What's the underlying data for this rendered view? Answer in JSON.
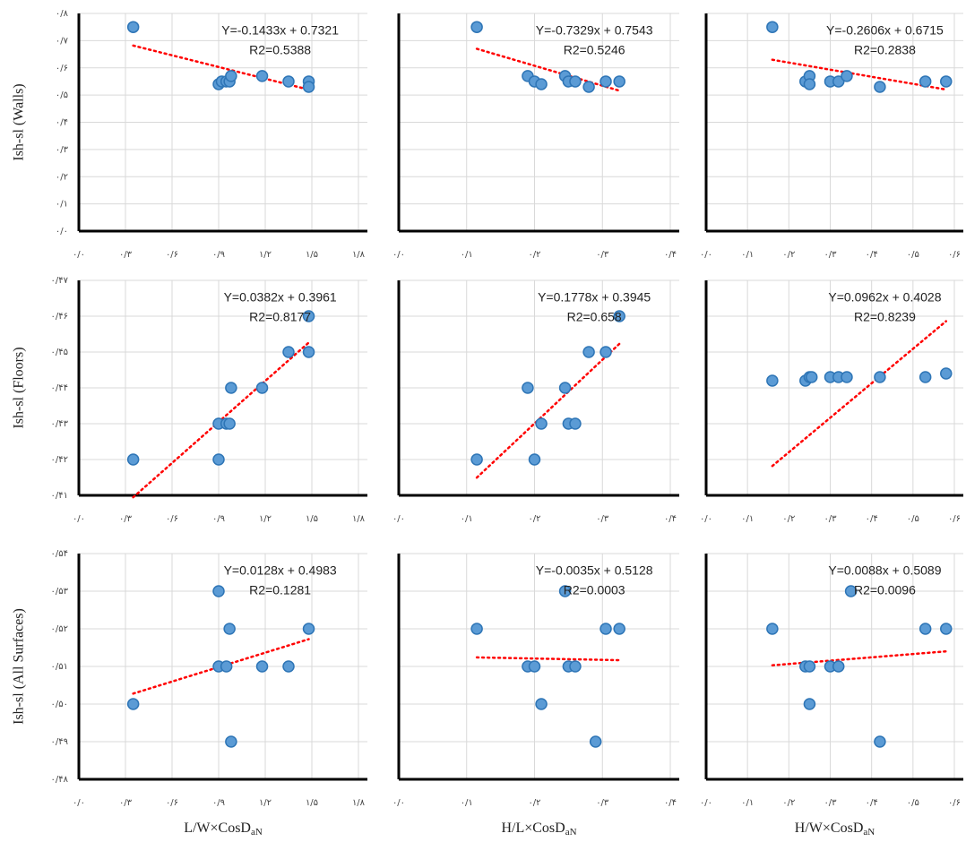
{
  "chart_data": [
    {
      "type": "scatter",
      "y_label": "Ish-sl (Walls)",
      "color": "#5b9bd5",
      "edge_color": "#2e75b6",
      "grid": true,
      "show_ytick_labels": true,
      "x": [
        0.35,
        0.9,
        0.92,
        0.95,
        0.97,
        0.98,
        1.18,
        1.35,
        1.48,
        1.48
      ],
      "values": [
        0.75,
        0.54,
        0.55,
        0.55,
        0.55,
        0.57,
        0.57,
        0.55,
        0.55,
        0.53
      ],
      "xlim": [
        0,
        1.8
      ],
      "ylim": [
        0,
        0.8
      ],
      "xticks": [
        {
          "value": 0,
          "label": "۰/۰"
        },
        {
          "value": 0.3,
          "label": "۰/۳"
        },
        {
          "value": 0.6,
          "label": "۰/۶"
        },
        {
          "value": 0.9,
          "label": "۰/۹"
        },
        {
          "value": 1.2,
          "label": "۱/۲"
        },
        {
          "value": 1.5,
          "label": "۱/۵"
        },
        {
          "value": 1.8,
          "label": "۱/۸"
        }
      ],
      "yticks": [
        {
          "value": 0,
          "label": "۰/۰"
        },
        {
          "value": 0.1,
          "label": "۰/۱"
        },
        {
          "value": 0.2,
          "label": "۰/۲"
        },
        {
          "value": 0.3,
          "label": "۰/۳"
        },
        {
          "value": 0.4,
          "label": "۰/۴"
        },
        {
          "value": 0.5,
          "label": "۰/۵"
        },
        {
          "value": 0.6,
          "label": "۰/۶"
        },
        {
          "value": 0.7,
          "label": "۰/۷"
        },
        {
          "value": 0.8,
          "label": "۰/۸"
        }
      ],
      "equation": "Y=-0.1433x + 0.7321",
      "r2": "R2=0.5388",
      "trendline": {
        "slope": -0.1433,
        "intercept": 0.7321,
        "color": "#ff0000"
      }
    },
    {
      "type": "scatter",
      "color": "#5b9bd5",
      "edge_color": "#2e75b6",
      "grid": true,
      "show_ytick_labels": false,
      "x": [
        0.115,
        0.19,
        0.2,
        0.21,
        0.245,
        0.25,
        0.26,
        0.28,
        0.305,
        0.325
      ],
      "values": [
        0.75,
        0.57,
        0.55,
        0.54,
        0.57,
        0.55,
        0.55,
        0.53,
        0.55,
        0.55
      ],
      "xlim": [
        0,
        0.4
      ],
      "ylim": [
        0,
        0.8
      ],
      "xticks": [
        {
          "value": 0,
          "label": "۰/۰"
        },
        {
          "value": 0.1,
          "label": "۰/۱"
        },
        {
          "value": 0.2,
          "label": "۰/۲"
        },
        {
          "value": 0.3,
          "label": "۰/۳"
        },
        {
          "value": 0.4,
          "label": "۰/۴"
        }
      ],
      "yticks": [
        0,
        0.1,
        0.2,
        0.3,
        0.4,
        0.5,
        0.6,
        0.7,
        0.8
      ],
      "equation": "Y=-0.7329x + 0.7543",
      "r2": "R2=0.5246",
      "trendline": {
        "slope": -0.7329,
        "intercept": 0.7543,
        "color": "#ff0000"
      }
    },
    {
      "type": "scatter",
      "color": "#5b9bd5",
      "edge_color": "#2e75b6",
      "grid": true,
      "show_ytick_labels": false,
      "x": [
        0.16,
        0.24,
        0.25,
        0.25,
        0.3,
        0.32,
        0.34,
        0.42,
        0.53,
        0.58
      ],
      "values": [
        0.75,
        0.55,
        0.57,
        0.54,
        0.55,
        0.55,
        0.57,
        0.53,
        0.55,
        0.55
      ],
      "xlim": [
        0,
        0.6
      ],
      "ylim": [
        0,
        0.8
      ],
      "xticks": [
        {
          "value": 0,
          "label": "۰/۰"
        },
        {
          "value": 0.1,
          "label": "۰/۱"
        },
        {
          "value": 0.2,
          "label": "۰/۲"
        },
        {
          "value": 0.3,
          "label": "۰/۳"
        },
        {
          "value": 0.4,
          "label": "۰/۴"
        },
        {
          "value": 0.5,
          "label": "۰/۵"
        },
        {
          "value": 0.6,
          "label": "۰/۶"
        }
      ],
      "yticks": [
        0,
        0.1,
        0.2,
        0.3,
        0.4,
        0.5,
        0.6,
        0.7,
        0.8
      ],
      "equation": "Y=-0.2606x + 0.6715",
      "r2": "R2=0.2838",
      "trendline": {
        "slope": -0.2606,
        "intercept": 0.6715,
        "color": "#ff0000"
      }
    },
    {
      "type": "scatter",
      "y_label": "Ish-sl (Floors)",
      "color": "#5b9bd5",
      "edge_color": "#2e75b6",
      "grid": true,
      "show_ytick_labels": true,
      "x": [
        0.35,
        0.9,
        0.9,
        0.95,
        0.97,
        0.98,
        1.18,
        1.35,
        1.48,
        1.48
      ],
      "values": [
        0.42,
        0.43,
        0.42,
        0.43,
        0.43,
        0.44,
        0.44,
        0.45,
        0.45,
        0.46
      ],
      "xlim": [
        0,
        1.8
      ],
      "ylim": [
        0.41,
        0.47
      ],
      "xticks": [
        {
          "value": 0,
          "label": "۰/۰"
        },
        {
          "value": 0.3,
          "label": "۰/۳"
        },
        {
          "value": 0.6,
          "label": "۰/۶"
        },
        {
          "value": 0.9,
          "label": "۰/۹"
        },
        {
          "value": 1.2,
          "label": "۱/۲"
        },
        {
          "value": 1.5,
          "label": "۱/۵"
        },
        {
          "value": 1.8,
          "label": "۱/۸"
        }
      ],
      "yticks": [
        {
          "value": 0.41,
          "label": "۰/۴۱"
        },
        {
          "value": 0.42,
          "label": "۰/۴۲"
        },
        {
          "value": 0.43,
          "label": "۰/۴۳"
        },
        {
          "value": 0.44,
          "label": "۰/۴۴"
        },
        {
          "value": 0.45,
          "label": "۰/۴۵"
        },
        {
          "value": 0.46,
          "label": "۰/۴۶"
        },
        {
          "value": 0.47,
          "label": "۰/۴۷"
        }
      ],
      "equation": "Y=0.0382x + 0.3961",
      "r2": "R2=0.8177",
      "trendline": {
        "slope": 0.0382,
        "intercept": 0.3961,
        "color": "#ff0000"
      }
    },
    {
      "type": "scatter",
      "color": "#5b9bd5",
      "edge_color": "#2e75b6",
      "grid": true,
      "show_ytick_labels": false,
      "x": [
        0.115,
        0.19,
        0.2,
        0.21,
        0.245,
        0.25,
        0.26,
        0.28,
        0.305,
        0.325
      ],
      "values": [
        0.42,
        0.44,
        0.42,
        0.43,
        0.44,
        0.43,
        0.43,
        0.45,
        0.45,
        0.46
      ],
      "xlim": [
        0,
        0.4
      ],
      "ylim": [
        0.41,
        0.47
      ],
      "xticks": [
        {
          "value": 0,
          "label": "۰/۰"
        },
        {
          "value": 0.1,
          "label": "۰/۱"
        },
        {
          "value": 0.2,
          "label": "۰/۲"
        },
        {
          "value": 0.3,
          "label": "۰/۳"
        },
        {
          "value": 0.4,
          "label": "۰/۴"
        }
      ],
      "yticks": [
        0.41,
        0.42,
        0.43,
        0.44,
        0.45,
        0.46,
        0.47
      ],
      "equation": "Y=0.1778x + 0.3945",
      "r2": "R2=0.658",
      "trendline": {
        "slope": 0.1778,
        "intercept": 0.3945,
        "color": "#ff0000"
      }
    },
    {
      "type": "scatter",
      "color": "#5b9bd5",
      "edge_color": "#2e75b6",
      "grid": true,
      "show_ytick_labels": false,
      "x": [
        0.16,
        0.24,
        0.25,
        0.255,
        0.3,
        0.32,
        0.34,
        0.42,
        0.53,
        0.58
      ],
      "values": [
        0.442,
        0.442,
        0.443,
        0.443,
        0.443,
        0.443,
        0.443,
        0.443,
        0.443,
        0.444
      ],
      "xlim": [
        0,
        0.6
      ],
      "ylim": [
        0.41,
        0.47
      ],
      "xticks": [
        {
          "value": 0,
          "label": "۰/۰"
        },
        {
          "value": 0.1,
          "label": "۰/۱"
        },
        {
          "value": 0.2,
          "label": "۰/۲"
        },
        {
          "value": 0.3,
          "label": "۰/۳"
        },
        {
          "value": 0.4,
          "label": "۰/۴"
        },
        {
          "value": 0.5,
          "label": "۰/۵"
        },
        {
          "value": 0.6,
          "label": "۰/۶"
        }
      ],
      "yticks": [
        0.41,
        0.42,
        0.43,
        0.44,
        0.45,
        0.46,
        0.47
      ],
      "equation": "Y=0.0962x + 0.4028",
      "r2": "R2=0.8239",
      "trendline": {
        "slope": 0.0962,
        "intercept": 0.4028,
        "color": "#ff0000"
      }
    },
    {
      "type": "scatter",
      "y_label": "Ish-sl (All Surfaces)",
      "x_label": "L/W×CosD",
      "x_label_sub": "aN",
      "color": "#5b9bd5",
      "edge_color": "#2e75b6",
      "grid": true,
      "show_ytick_labels": true,
      "x": [
        0.35,
        0.9,
        0.9,
        0.95,
        0.97,
        0.98,
        1.18,
        1.35,
        1.48
      ],
      "values": [
        0.5,
        0.51,
        0.53,
        0.51,
        0.52,
        0.49,
        0.51,
        0.51,
        0.52
      ],
      "xlim": [
        0,
        1.8
      ],
      "ylim": [
        0.48,
        0.54
      ],
      "xticks": [
        {
          "value": 0,
          "label": "۰/۰"
        },
        {
          "value": 0.3,
          "label": "۰/۳"
        },
        {
          "value": 0.6,
          "label": "۰/۶"
        },
        {
          "value": 0.9,
          "label": "۰/۹"
        },
        {
          "value": 1.2,
          "label": "۱/۲"
        },
        {
          "value": 1.5,
          "label": "۱/۵"
        },
        {
          "value": 1.8,
          "label": "۱/۸"
        }
      ],
      "yticks": [
        {
          "value": 0.48,
          "label": "۰/۴۸"
        },
        {
          "value": 0.49,
          "label": "۰/۴۹"
        },
        {
          "value": 0.5,
          "label": "۰/۵۰"
        },
        {
          "value": 0.51,
          "label": "۰/۵۱"
        },
        {
          "value": 0.52,
          "label": "۰/۵۲"
        },
        {
          "value": 0.53,
          "label": "۰/۵۳"
        },
        {
          "value": 0.54,
          "label": "۰/۵۴"
        }
      ],
      "equation": "Y=0.0128x + 0.4983",
      "r2": "R2=0.1281",
      "trendline": {
        "slope": 0.0128,
        "intercept": 0.4983,
        "color": "#ff0000"
      }
    },
    {
      "type": "scatter",
      "x_label": "H/L×CosD",
      "x_label_sub": "aN",
      "color": "#5b9bd5",
      "edge_color": "#2e75b6",
      "grid": true,
      "show_ytick_labels": false,
      "x": [
        0.115,
        0.19,
        0.2,
        0.21,
        0.245,
        0.25,
        0.26,
        0.29,
        0.305,
        0.325
      ],
      "values": [
        0.52,
        0.51,
        0.51,
        0.5,
        0.53,
        0.51,
        0.51,
        0.49,
        0.52,
        0.52
      ],
      "xlim": [
        0,
        0.4
      ],
      "ylim": [
        0.48,
        0.54
      ],
      "xticks": [
        {
          "value": 0,
          "label": "۰/۰"
        },
        {
          "value": 0.1,
          "label": "۰/۱"
        },
        {
          "value": 0.2,
          "label": "۰/۲"
        },
        {
          "value": 0.3,
          "label": "۰/۳"
        },
        {
          "value": 0.4,
          "label": "۰/۴"
        }
      ],
      "yticks": [
        0.48,
        0.49,
        0.5,
        0.51,
        0.52,
        0.53,
        0.54
      ],
      "equation": "Y=-0.0035x + 0.5128",
      "r2": "R2=0.0003",
      "trendline": {
        "slope": -0.0035,
        "intercept": 0.5128,
        "color": "#ff0000"
      }
    },
    {
      "type": "scatter",
      "x_label": "H/W×CosD",
      "x_label_sub": "aN",
      "color": "#5b9bd5",
      "edge_color": "#2e75b6",
      "grid": true,
      "show_ytick_labels": false,
      "x": [
        0.16,
        0.24,
        0.25,
        0.25,
        0.3,
        0.32,
        0.35,
        0.42,
        0.53,
        0.58
      ],
      "values": [
        0.52,
        0.51,
        0.51,
        0.5,
        0.51,
        0.51,
        0.53,
        0.49,
        0.52,
        0.52
      ],
      "xlim": [
        0,
        0.6
      ],
      "ylim": [
        0.48,
        0.54
      ],
      "xticks": [
        {
          "value": 0,
          "label": "۰/۰"
        },
        {
          "value": 0.1,
          "label": "۰/۱"
        },
        {
          "value": 0.2,
          "label": "۰/۲"
        },
        {
          "value": 0.3,
          "label": "۰/۳"
        },
        {
          "value": 0.4,
          "label": "۰/۴"
        },
        {
          "value": 0.5,
          "label": "۰/۵"
        },
        {
          "value": 0.6,
          "label": "۰/۶"
        }
      ],
      "yticks": [
        0.48,
        0.49,
        0.5,
        0.51,
        0.52,
        0.53,
        0.54
      ],
      "equation": "Y=0.0088x + 0.5089",
      "r2": "R2=0.0096",
      "trendline": {
        "slope": 0.0088,
        "intercept": 0.5089,
        "color": "#ff0000"
      }
    }
  ]
}
